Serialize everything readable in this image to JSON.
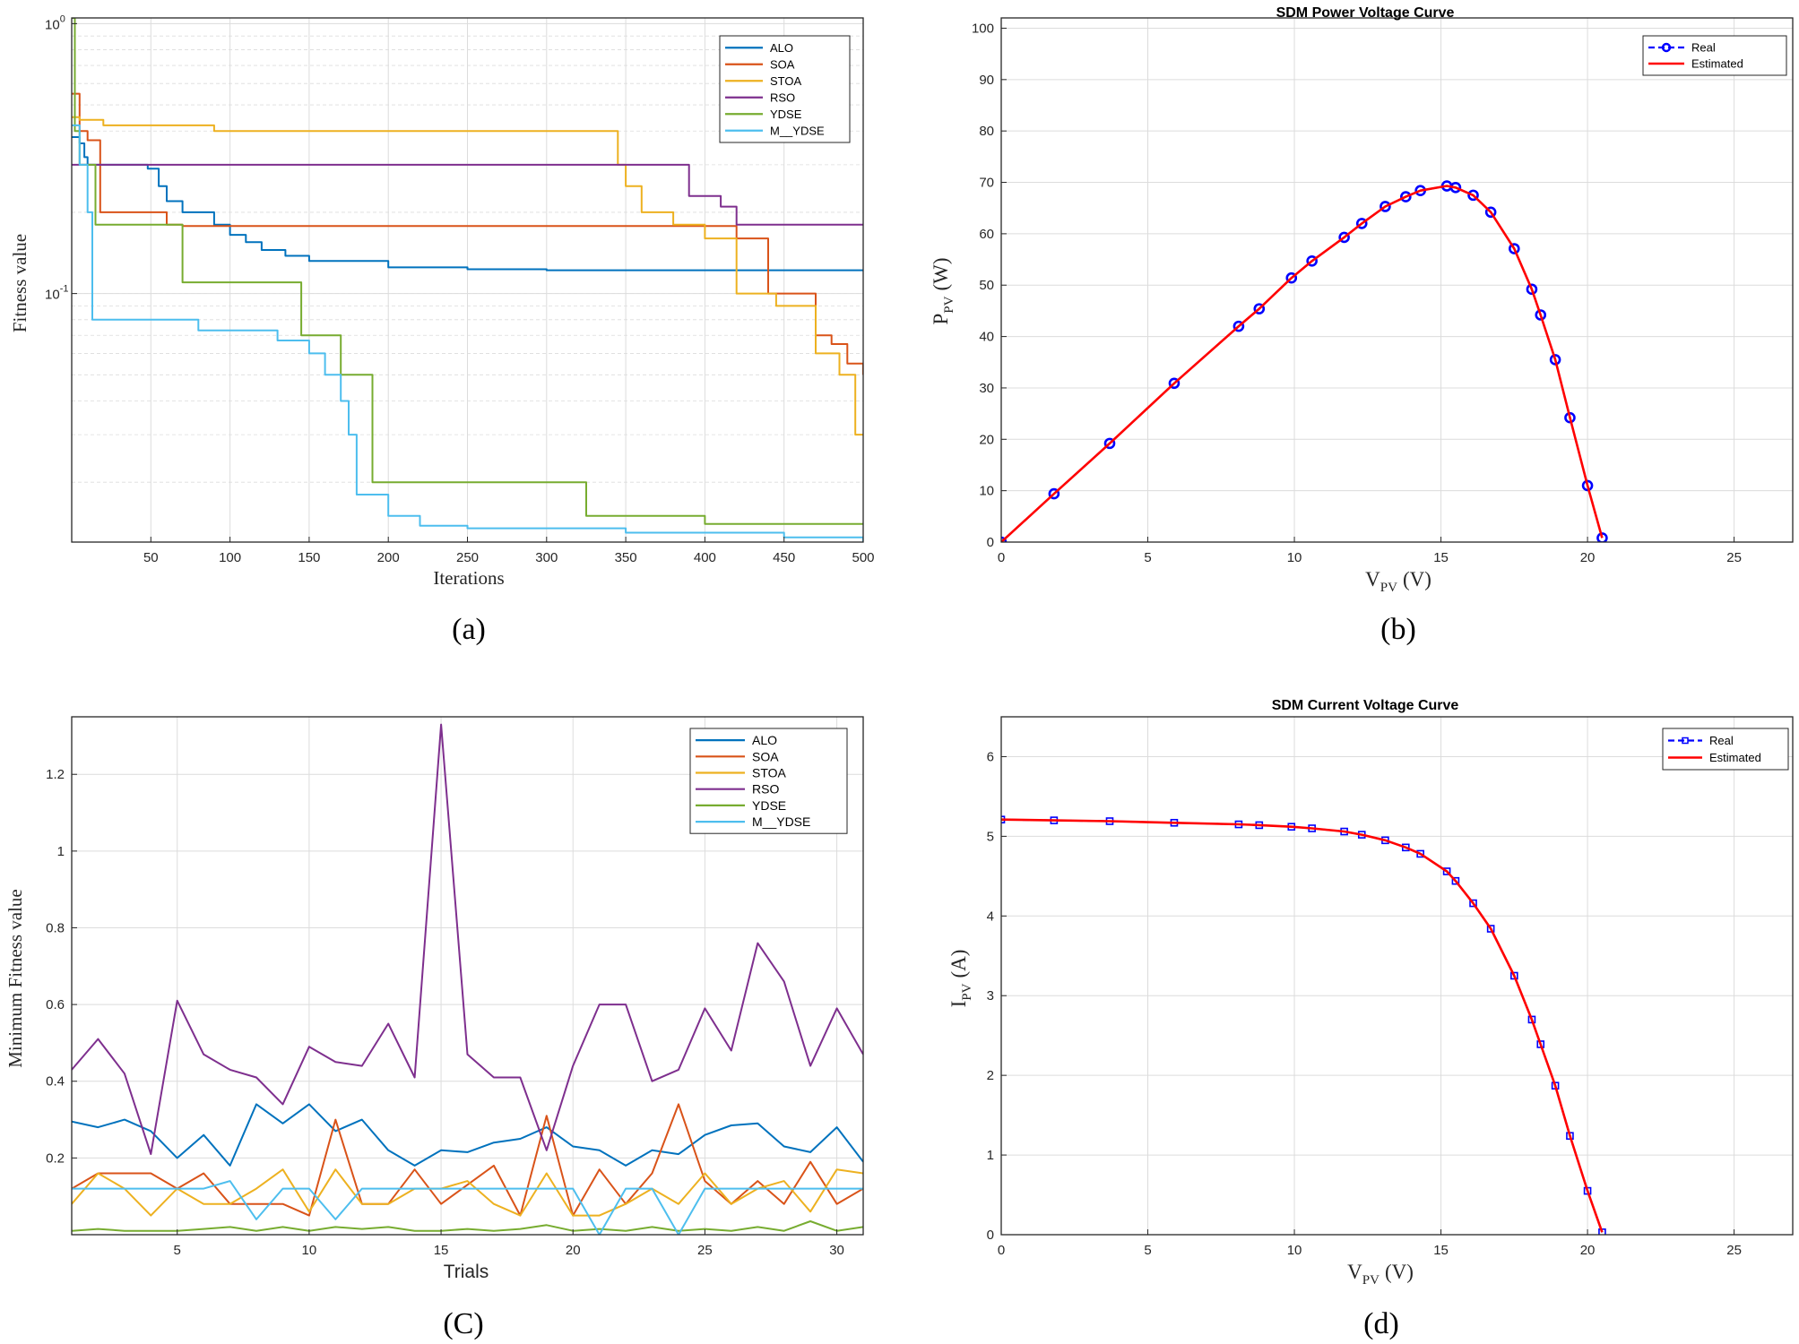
{
  "colors": {
    "ALO": "#0072bd",
    "SOA": "#d95319",
    "STOA": "#edb120",
    "RSO": "#7e2f8e",
    "YDSE": "#77ac30",
    "M__YDSE": "#4dbeee",
    "real": "#0000ff",
    "estimated": "#ff0000",
    "grid": "#dcdcdc",
    "axis": "#262626"
  },
  "chart_data": [
    {
      "id": "a",
      "type": "line",
      "panel_label": "(a)",
      "title": "",
      "xlabel": "Iterations",
      "ylabel": "Fitness value",
      "yscale": "log",
      "xlim": [
        0,
        500
      ],
      "ylim": [
        0.012,
        1.05
      ],
      "xticks": [
        50,
        100,
        150,
        200,
        250,
        300,
        350,
        400,
        450,
        500
      ],
      "yticks": [
        {
          "value": 1,
          "base": "10",
          "exp": "0"
        },
        {
          "value": 0.1,
          "base": "10",
          "exp": "-1"
        }
      ],
      "legend": {
        "position": "top-right"
      },
      "series": [
        {
          "name": "ALO",
          "step": true,
          "x": [
            0,
            5,
            8,
            10,
            28,
            48,
            55,
            60,
            70,
            90,
            100,
            110,
            120,
            135,
            150,
            200,
            250,
            300,
            400,
            500
          ],
          "y": [
            0.38,
            0.36,
            0.32,
            0.3,
            0.3,
            0.29,
            0.25,
            0.22,
            0.2,
            0.18,
            0.165,
            0.155,
            0.145,
            0.138,
            0.132,
            0.125,
            0.123,
            0.122,
            0.122,
            0.122
          ]
        },
        {
          "name": "SOA",
          "step": true,
          "x": [
            0,
            5,
            10,
            18,
            60,
            70,
            390,
            420,
            440,
            470,
            480,
            490,
            500
          ],
          "y": [
            0.55,
            0.4,
            0.37,
            0.2,
            0.18,
            0.178,
            0.178,
            0.16,
            0.1,
            0.07,
            0.065,
            0.055,
            0.05
          ]
        },
        {
          "name": "STOA",
          "step": true,
          "x": [
            0,
            5,
            20,
            90,
            345,
            350,
            360,
            380,
            400,
            420,
            445,
            470,
            485,
            495,
            500
          ],
          "y": [
            0.45,
            0.44,
            0.42,
            0.4,
            0.3,
            0.25,
            0.2,
            0.18,
            0.16,
            0.1,
            0.09,
            0.06,
            0.05,
            0.03,
            0.03
          ]
        },
        {
          "name": "RSO",
          "step": true,
          "x": [
            0,
            380,
            390,
            410,
            420,
            470,
            500
          ],
          "y": [
            0.3,
            0.3,
            0.23,
            0.21,
            0.18,
            0.18,
            0.18
          ]
        },
        {
          "name": "YDSE",
          "step": true,
          "x": [
            0,
            2,
            5,
            15,
            70,
            145,
            170,
            190,
            200,
            325,
            400,
            500
          ],
          "y": [
            1.05,
            0.4,
            0.3,
            0.18,
            0.11,
            0.07,
            0.05,
            0.02,
            0.02,
            0.015,
            0.014,
            0.014
          ]
        },
        {
          "name": "M__YDSE",
          "step": true,
          "x": [
            0,
            5,
            10,
            13,
            80,
            130,
            150,
            160,
            170,
            175,
            180,
            200,
            220,
            250,
            350,
            450,
            500
          ],
          "y": [
            0.42,
            0.3,
            0.2,
            0.08,
            0.073,
            0.067,
            0.06,
            0.05,
            0.04,
            0.03,
            0.018,
            0.015,
            0.0138,
            0.0135,
            0.013,
            0.0125,
            0.012
          ]
        }
      ]
    },
    {
      "id": "b",
      "type": "line",
      "panel_label": "(b)",
      "title": "SDM Power Voltage Curve",
      "xlabel_main": "V",
      "xlabel_sub": "PV",
      "xlabel_unit": "(V)",
      "ylabel_main": "P",
      "ylabel_sub": "PV",
      "ylabel_unit": "(W)",
      "xlim": [
        0,
        27
      ],
      "ylim": [
        0,
        102
      ],
      "xticks": [
        0,
        5,
        10,
        15,
        20,
        25
      ],
      "yticks": [
        0,
        10,
        20,
        30,
        40,
        50,
        60,
        70,
        80,
        90,
        100
      ],
      "legend": {
        "position": "top-right"
      },
      "series": [
        {
          "name": "Real",
          "marker": "o",
          "x": [
            0.0,
            1.8,
            3.7,
            5.9,
            8.1,
            8.8,
            9.9,
            10.6,
            11.7,
            12.3,
            13.1,
            13.8,
            14.3,
            15.2,
            15.5,
            16.1,
            16.7,
            17.5,
            18.1,
            18.4,
            18.9,
            19.4,
            20.0,
            20.5
          ],
          "y": [
            0.0,
            9.4,
            19.2,
            30.9,
            42.0,
            45.4,
            51.4,
            54.7,
            59.3,
            62.0,
            65.3,
            67.2,
            68.4,
            69.3,
            69.0,
            67.5,
            64.2,
            57.1,
            49.2,
            44.2,
            35.5,
            24.2,
            11.0,
            0.8
          ]
        },
        {
          "name": "Estimated",
          "marker": "",
          "x": [
            0.0,
            1.8,
            3.7,
            5.9,
            8.1,
            8.8,
            9.9,
            10.6,
            11.7,
            12.3,
            13.1,
            13.8,
            14.3,
            15.2,
            15.5,
            16.1,
            16.7,
            17.5,
            18.1,
            18.4,
            18.9,
            19.4,
            20.0,
            20.5
          ],
          "y": [
            0.0,
            9.4,
            19.2,
            30.9,
            42.0,
            45.4,
            51.4,
            54.7,
            59.3,
            62.0,
            65.3,
            67.2,
            68.4,
            69.3,
            69.0,
            67.5,
            64.2,
            57.1,
            49.2,
            44.2,
            35.5,
            24.2,
            11.0,
            0.8
          ]
        }
      ]
    },
    {
      "id": "c",
      "type": "line",
      "panel_label": "(C)",
      "title": "",
      "xlabel": "Trials",
      "ylabel": "Minimum Fitness value",
      "xlim": [
        1,
        31
      ],
      "ylim": [
        0,
        1.35
      ],
      "xticks": [
        5,
        10,
        15,
        20,
        25,
        30
      ],
      "yticks": [
        0.2,
        0.4,
        0.6,
        0.8,
        1,
        1.2
      ],
      "ytick_labels": [
        "0.2",
        "0.4",
        "0.6",
        "0.8",
        "1",
        "1.2"
      ],
      "legend": {
        "position": "top-right"
      },
      "series": [
        {
          "name": "ALO",
          "x": [
            1,
            2,
            3,
            4,
            5,
            6,
            7,
            8,
            9,
            10,
            11,
            12,
            13,
            14,
            15,
            16,
            17,
            18,
            19,
            20,
            21,
            22,
            23,
            24,
            25,
            26,
            27,
            28,
            29,
            30,
            31
          ],
          "y": [
            0.295,
            0.28,
            0.3,
            0.27,
            0.2,
            0.26,
            0.18,
            0.34,
            0.29,
            0.34,
            0.27,
            0.3,
            0.22,
            0.18,
            0.22,
            0.215,
            0.24,
            0.25,
            0.28,
            0.23,
            0.22,
            0.18,
            0.22,
            0.21,
            0.26,
            0.285,
            0.29,
            0.23,
            0.215,
            0.28,
            0.19
          ]
        },
        {
          "name": "SOA",
          "x": [
            1,
            2,
            3,
            4,
            5,
            6,
            7,
            8,
            9,
            10,
            11,
            12,
            13,
            14,
            15,
            16,
            17,
            18,
            19,
            20,
            21,
            22,
            23,
            24,
            25,
            26,
            27,
            28,
            29,
            30,
            31
          ],
          "y": [
            0.12,
            0.16,
            0.16,
            0.16,
            0.12,
            0.16,
            0.08,
            0.08,
            0.08,
            0.05,
            0.3,
            0.08,
            0.08,
            0.17,
            0.08,
            0.13,
            0.18,
            0.05,
            0.31,
            0.05,
            0.17,
            0.08,
            0.16,
            0.34,
            0.14,
            0.08,
            0.14,
            0.08,
            0.19,
            0.08,
            0.12
          ]
        },
        {
          "name": "STOA",
          "x": [
            1,
            2,
            3,
            4,
            5,
            6,
            7,
            8,
            9,
            10,
            11,
            12,
            13,
            14,
            15,
            16,
            17,
            18,
            19,
            20,
            21,
            22,
            23,
            24,
            25,
            26,
            27,
            28,
            29,
            30,
            31
          ],
          "y": [
            0.08,
            0.16,
            0.12,
            0.05,
            0.12,
            0.08,
            0.08,
            0.12,
            0.17,
            0.06,
            0.17,
            0.08,
            0.08,
            0.12,
            0.12,
            0.14,
            0.08,
            0.05,
            0.16,
            0.05,
            0.05,
            0.08,
            0.12,
            0.08,
            0.16,
            0.08,
            0.12,
            0.14,
            0.06,
            0.17,
            0.16
          ]
        },
        {
          "name": "RSO",
          "x": [
            1,
            2,
            3,
            4,
            5,
            6,
            7,
            8,
            9,
            10,
            11,
            12,
            13,
            14,
            15,
            16,
            17,
            18,
            19,
            20,
            21,
            22,
            23,
            24,
            25,
            26,
            27,
            28,
            29,
            30,
            31
          ],
          "y": [
            0.43,
            0.51,
            0.42,
            0.21,
            0.61,
            0.47,
            0.43,
            0.41,
            0.34,
            0.49,
            0.45,
            0.44,
            0.55,
            0.41,
            1.33,
            0.47,
            0.41,
            0.41,
            0.22,
            0.44,
            0.6,
            0.6,
            0.4,
            0.43,
            0.59,
            0.48,
            0.76,
            0.66,
            0.44,
            0.59,
            0.47
          ]
        },
        {
          "name": "YDSE",
          "x": [
            1,
            2,
            3,
            4,
            5,
            6,
            7,
            8,
            9,
            10,
            11,
            12,
            13,
            14,
            15,
            16,
            17,
            18,
            19,
            20,
            21,
            22,
            23,
            24,
            25,
            26,
            27,
            28,
            29,
            30,
            31
          ],
          "y": [
            0.01,
            0.015,
            0.01,
            0.01,
            0.01,
            0.015,
            0.02,
            0.01,
            0.02,
            0.01,
            0.02,
            0.015,
            0.02,
            0.01,
            0.01,
            0.015,
            0.01,
            0.015,
            0.025,
            0.01,
            0.015,
            0.01,
            0.02,
            0.01,
            0.015,
            0.01,
            0.02,
            0.01,
            0.035,
            0.01,
            0.02
          ]
        },
        {
          "name": "M__YDSE",
          "x": [
            1,
            2,
            3,
            4,
            5,
            6,
            7,
            8,
            9,
            10,
            11,
            12,
            13,
            14,
            15,
            16,
            17,
            18,
            19,
            20,
            21,
            22,
            23,
            24,
            25,
            26,
            27,
            28,
            29,
            30,
            31
          ],
          "y": [
            0.12,
            0.12,
            0.12,
            0.12,
            0.12,
            0.12,
            0.14,
            0.04,
            0.12,
            0.12,
            0.04,
            0.12,
            0.12,
            0.12,
            0.12,
            0.12,
            0.12,
            0.12,
            0.12,
            0.12,
            0.0,
            0.12,
            0.12,
            0.0,
            0.12,
            0.12,
            0.12,
            0.12,
            0.12,
            0.12,
            0.12
          ]
        }
      ]
    },
    {
      "id": "d",
      "type": "line",
      "panel_label": "(d)",
      "title": "SDM Current Voltage Curve",
      "xlabel_main": "V",
      "xlabel_sub": "PV",
      "xlabel_unit": "(V)",
      "ylabel_main": "I",
      "ylabel_sub": "PV",
      "ylabel_unit": "(A)",
      "xlim": [
        0,
        27
      ],
      "ylim": [
        0,
        6.5
      ],
      "xticks": [
        0,
        5,
        10,
        15,
        20,
        25
      ],
      "yticks": [
        0,
        1,
        2,
        3,
        4,
        5,
        6
      ],
      "legend": {
        "position": "top-right"
      },
      "series": [
        {
          "name": "Real",
          "marker": "s",
          "x": [
            0.0,
            1.8,
            3.7,
            5.9,
            8.1,
            8.8,
            9.9,
            10.6,
            11.7,
            12.3,
            13.1,
            13.8,
            14.3,
            15.2,
            15.5,
            16.1,
            16.7,
            17.5,
            18.1,
            18.4,
            18.9,
            19.4,
            20.0,
            20.5
          ],
          "y": [
            5.21,
            5.2,
            5.19,
            5.17,
            5.15,
            5.14,
            5.12,
            5.1,
            5.06,
            5.02,
            4.95,
            4.86,
            4.78,
            4.56,
            4.44,
            4.16,
            3.84,
            3.25,
            2.7,
            2.39,
            1.87,
            1.24,
            0.55,
            0.03
          ]
        },
        {
          "name": "Estimated",
          "marker": "",
          "x": [
            0.0,
            1.8,
            3.7,
            5.9,
            8.1,
            8.8,
            9.9,
            10.6,
            11.7,
            12.3,
            13.1,
            13.8,
            14.3,
            15.2,
            15.5,
            16.1,
            16.7,
            17.5,
            18.1,
            18.4,
            18.9,
            19.4,
            20.0,
            20.5
          ],
          "y": [
            5.21,
            5.2,
            5.19,
            5.17,
            5.15,
            5.14,
            5.12,
            5.1,
            5.06,
            5.02,
            4.95,
            4.86,
            4.78,
            4.56,
            4.44,
            4.16,
            3.84,
            3.25,
            2.7,
            2.39,
            1.87,
            1.24,
            0.55,
            0.03
          ]
        }
      ]
    }
  ]
}
